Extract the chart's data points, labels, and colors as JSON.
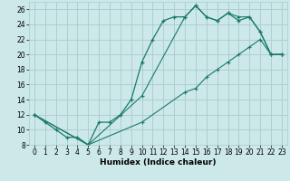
{
  "xlabel": "Humidex (Indice chaleur)",
  "bg_color": "#cce8e8",
  "grid_color": "#aacccc",
  "line_color": "#1a7a6a",
  "xlim": [
    -0.5,
    23.5
  ],
  "ylim": [
    8,
    27
  ],
  "xticks": [
    0,
    1,
    2,
    3,
    4,
    5,
    6,
    7,
    8,
    9,
    10,
    11,
    12,
    13,
    14,
    15,
    16,
    17,
    18,
    19,
    20,
    21,
    22,
    23
  ],
  "yticks": [
    8,
    10,
    12,
    14,
    16,
    18,
    20,
    22,
    24,
    26
  ],
  "series1_x": [
    0,
    1,
    2,
    3,
    4,
    5,
    6,
    7,
    8,
    9,
    10,
    11,
    12,
    13,
    14,
    15,
    16,
    17,
    18,
    19,
    20,
    21,
    22,
    23
  ],
  "series1_y": [
    12,
    11,
    10,
    9,
    9,
    8,
    11,
    11,
    12,
    14,
    19,
    22,
    24.5,
    25,
    25,
    26.5,
    25,
    24.5,
    25.5,
    24.5,
    25,
    23,
    20,
    20
  ],
  "series2_x": [
    0,
    5,
    10,
    14,
    15,
    16,
    17,
    18,
    19,
    20,
    21,
    22,
    23
  ],
  "series2_y": [
    12,
    8,
    14.5,
    25,
    26.5,
    25,
    24.5,
    25.5,
    25,
    25,
    23,
    20,
    20
  ],
  "series3_x": [
    0,
    5,
    10,
    14,
    15,
    16,
    17,
    18,
    19,
    20,
    21,
    22,
    23
  ],
  "series3_y": [
    12,
    8,
    11,
    15,
    15.5,
    17,
    18,
    19,
    20,
    21,
    22,
    20,
    20
  ],
  "tick_fontsize": 5.5,
  "xlabel_fontsize": 6.5
}
